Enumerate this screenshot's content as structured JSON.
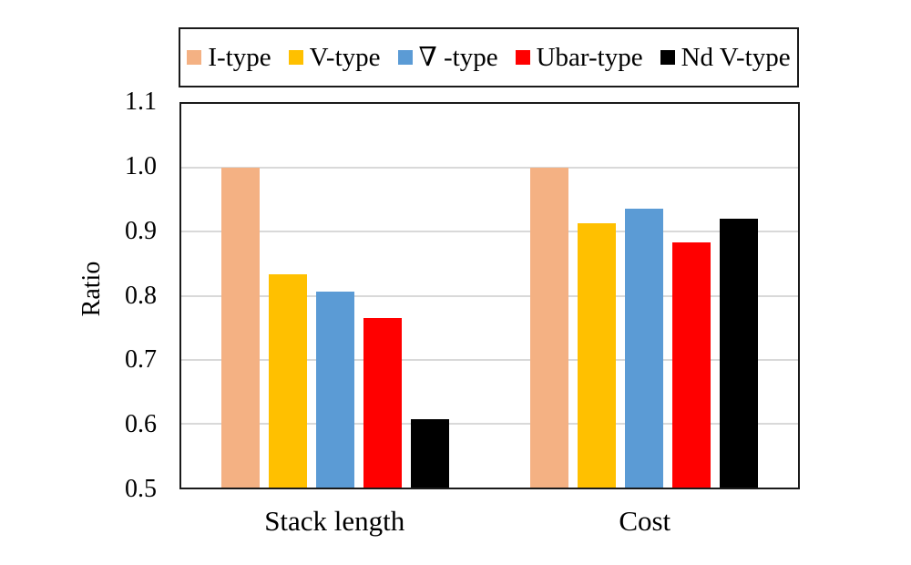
{
  "chart_data": {
    "type": "bar",
    "title": "",
    "ylabel": "Ratio",
    "xlabel": "",
    "categories": [
      "Stack length",
      "Cost"
    ],
    "series": [
      {
        "name": "I-type",
        "color": "#F4B183",
        "values": [
          1.0,
          1.0
        ]
      },
      {
        "name": "V-type",
        "color": "#FFC000",
        "values": [
          0.833,
          0.914
        ]
      },
      {
        "name": "∇ -type",
        "color": "#5B9BD5",
        "values": [
          0.807,
          0.936
        ]
      },
      {
        "name": "Ubar-type",
        "color": "#FF0000",
        "values": [
          0.765,
          0.884
        ]
      },
      {
        "name": "Nd V-type",
        "color": "#000000",
        "values": [
          0.607,
          0.92
        ]
      }
    ],
    "ylim": [
      0.5,
      1.1
    ],
    "yticks": [
      0.5,
      0.6,
      0.7,
      0.8,
      0.9,
      1.0,
      1.1
    ],
    "ytick_labels": [
      "0.5",
      "0.6",
      "0.7",
      "0.8",
      "0.9",
      "1.0",
      "1.1"
    ],
    "grid": true,
    "gridline_color": "#D9D9D9",
    "legend_position": "top"
  }
}
